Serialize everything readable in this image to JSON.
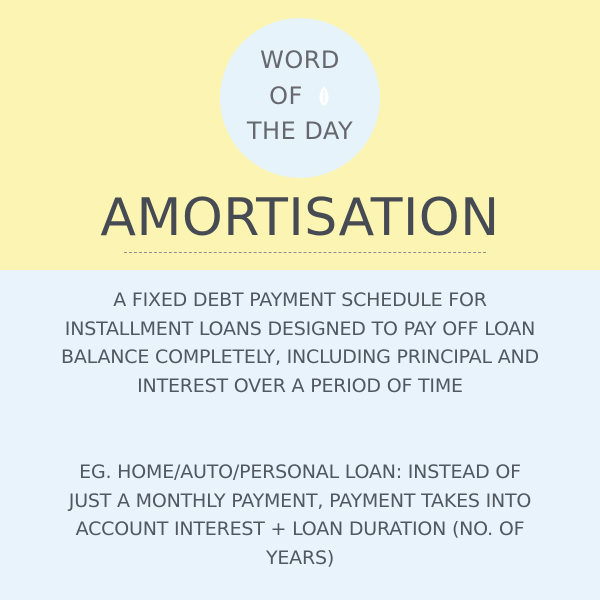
{
  "badge": {
    "line1": "WORD",
    "line2": "OF",
    "line3": "THE DAY",
    "icon": "seed-icon"
  },
  "main": {
    "title": "AMORTISATION",
    "definition": "A FIXED DEBT PAYMENT SCHEDULE FOR INSTALLMENT LOANS DESIGNED TO PAY OFF LOAN BALANCE COMPLETELY, INCLUDING PRINCIPAL AND INTEREST OVER A PERIOD OF TIME",
    "example": "EG. HOME/AUTO/PERSONAL LOAN: INSTEAD OF JUST A MONTHLY PAYMENT, PAYMENT TAKES INTO ACCOUNT INTEREST + LOAN DURATION (NO. OF YEARS)"
  },
  "colors": {
    "top_background": "#fbf4b2",
    "bottom_background": "#e8f3fb",
    "badge_background": "#e6f3fb",
    "text": "#55585f"
  }
}
